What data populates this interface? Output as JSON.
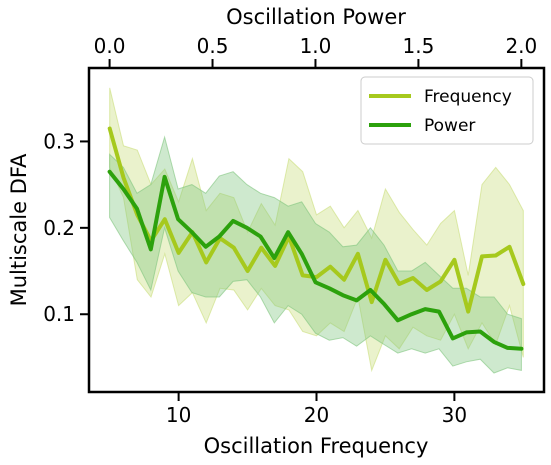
{
  "chart_data": {
    "type": "line",
    "title": "",
    "xlabel": "Oscillation Frequency",
    "ylabel": "Multiscale DFA",
    "x2label": "Oscillation Power",
    "xlim": [
      3.5,
      36.5
    ],
    "ylim": [
      0.01,
      0.385
    ],
    "x2lim": [
      -0.1,
      2.11
    ],
    "xticks": [
      10,
      20,
      30
    ],
    "yticks": [
      0.1,
      0.2,
      0.3
    ],
    "x2ticks": [
      0.0,
      0.5,
      1.0,
      1.5,
      2.0
    ],
    "xtick_labels": [
      "10",
      "20",
      "30"
    ],
    "ytick_labels": [
      "0.1",
      "0.2",
      "0.3"
    ],
    "x2tick_labels": [
      "0.0",
      "0.5",
      "1.0",
      "1.5",
      "2.0"
    ],
    "grid": false,
    "legend_position": "top-right",
    "series": [
      {
        "name": "Frequency",
        "axis": "bottom",
        "color": "#a6c91d",
        "band_color": "#c9dd7a",
        "x": [
          5,
          6,
          7,
          8,
          9,
          10,
          11,
          12,
          13,
          14,
          15,
          16,
          17,
          18,
          19,
          20,
          21,
          22,
          23,
          24,
          25,
          26,
          27,
          28,
          29,
          30,
          31,
          32,
          33,
          34,
          35
        ],
        "values": [
          0.315,
          0.258,
          0.215,
          0.185,
          0.21,
          0.171,
          0.195,
          0.16,
          0.188,
          0.177,
          0.15,
          0.177,
          0.156,
          0.19,
          0.145,
          0.143,
          0.155,
          0.14,
          0.17,
          0.114,
          0.163,
          0.135,
          0.142,
          0.128,
          0.138,
          0.163,
          0.103,
          0.167,
          0.168,
          0.178,
          0.135
        ],
        "upper": [
          0.362,
          0.295,
          0.29,
          0.25,
          0.268,
          0.23,
          0.28,
          0.22,
          0.24,
          0.235,
          0.195,
          0.228,
          0.203,
          0.28,
          0.265,
          0.215,
          0.225,
          0.2,
          0.22,
          0.188,
          0.245,
          0.218,
          0.198,
          0.18,
          0.205,
          0.22,
          0.145,
          0.25,
          0.27,
          0.25,
          0.22
        ],
        "lower": [
          0.27,
          0.235,
          0.14,
          0.12,
          0.17,
          0.11,
          0.125,
          0.09,
          0.13,
          0.128,
          0.105,
          0.13,
          0.11,
          0.105,
          0.08,
          0.075,
          0.09,
          0.08,
          0.12,
          0.035,
          0.075,
          0.06,
          0.085,
          0.075,
          0.07,
          0.1,
          0.06,
          0.09,
          0.065,
          0.11,
          0.05
        ]
      },
      {
        "name": "Power",
        "axis": "top",
        "color": "#2ca10c",
        "band_color": "#7fc47d",
        "x": [
          0.0,
          0.067,
          0.133,
          0.2,
          0.267,
          0.333,
          0.4,
          0.467,
          0.533,
          0.6,
          0.667,
          0.733,
          0.8,
          0.867,
          0.933,
          1.0,
          1.067,
          1.133,
          1.2,
          1.267,
          1.333,
          1.4,
          1.467,
          1.533,
          1.6,
          1.667,
          1.733,
          1.8,
          1.867,
          1.933,
          2.0
        ],
        "values": [
          0.265,
          0.245,
          0.222,
          0.175,
          0.259,
          0.21,
          0.195,
          0.178,
          0.19,
          0.208,
          0.2,
          0.19,
          0.165,
          0.195,
          0.17,
          0.137,
          0.13,
          0.122,
          0.116,
          0.128,
          0.112,
          0.093,
          0.1,
          0.106,
          0.103,
          0.072,
          0.079,
          0.08,
          0.068,
          0.061,
          0.06
        ],
        "upper": [
          0.285,
          0.27,
          0.24,
          0.25,
          0.305,
          0.245,
          0.25,
          0.24,
          0.26,
          0.265,
          0.25,
          0.24,
          0.235,
          0.225,
          0.23,
          0.205,
          0.195,
          0.178,
          0.18,
          0.2,
          0.18,
          0.15,
          0.15,
          0.16,
          0.145,
          0.13,
          0.13,
          0.12,
          0.12,
          0.1,
          0.095
        ],
        "lower": [
          0.212,
          0.185,
          0.16,
          0.128,
          0.2,
          0.15,
          0.125,
          0.12,
          0.12,
          0.138,
          0.14,
          0.12,
          0.09,
          0.11,
          0.1,
          0.078,
          0.07,
          0.073,
          0.063,
          0.075,
          0.065,
          0.055,
          0.06,
          0.055,
          0.06,
          0.04,
          0.045,
          0.048,
          0.032,
          0.038,
          0.035
        ]
      }
    ]
  }
}
